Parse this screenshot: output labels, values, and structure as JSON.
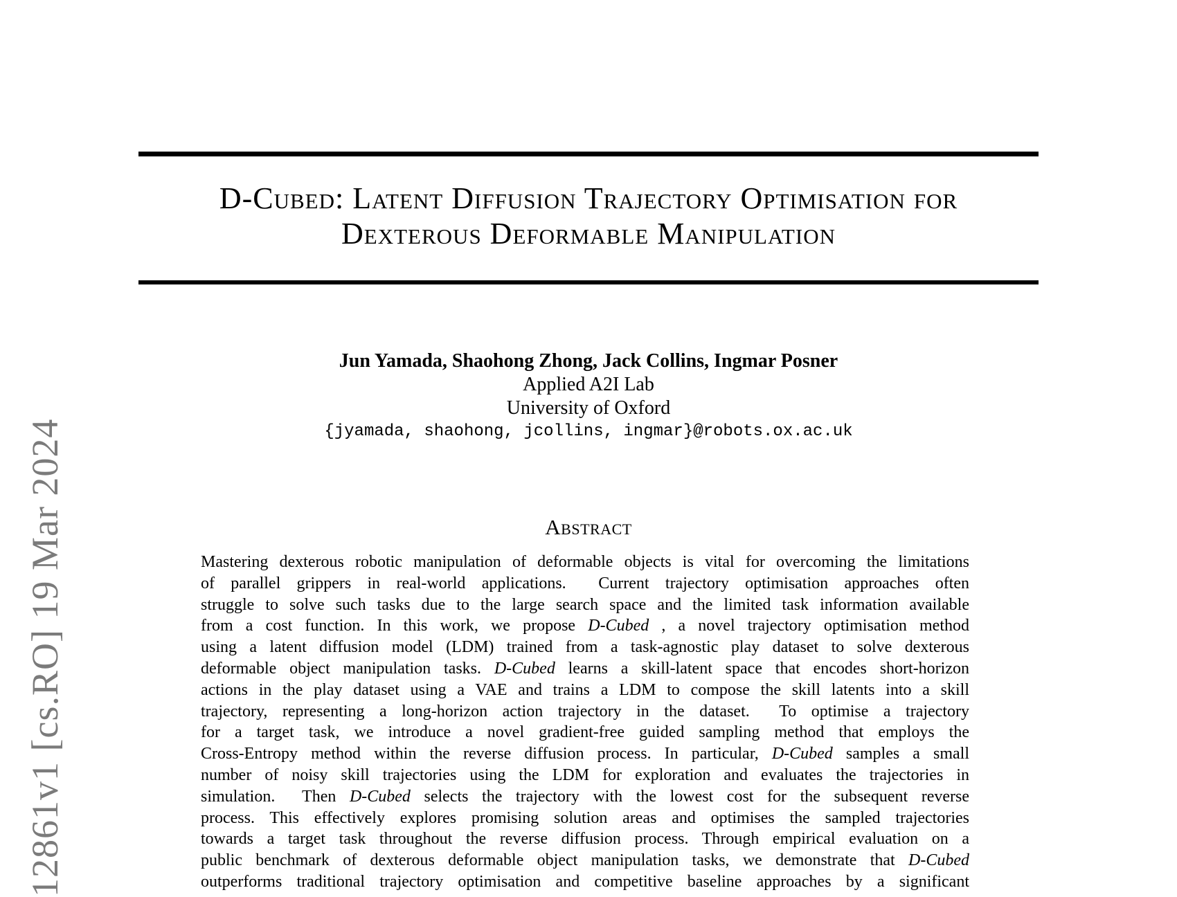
{
  "page": {
    "background": "#ffffff",
    "text_color": "#000000",
    "watermark_color": "#7b7b7b"
  },
  "watermark": {
    "text": "12861v1  [cs.RO]  19 Mar 2024"
  },
  "title": {
    "line1": "D-Cubed: Latent Diffusion Trajectory Optimisation for",
    "line2": "Dexterous Deformable Manipulation"
  },
  "authors": {
    "names": "Jun Yamada, Shaohong Zhong, Jack Collins, Ingmar Posner",
    "lab": "Applied A2I Lab",
    "institution": "University of Oxford",
    "email": "{jyamada, shaohong, jcollins, ingmar}@robots.ox.ac.uk"
  },
  "abstract": {
    "heading": "Abstract",
    "italic_token": "D-Cubed",
    "lines": [
      "Mastering dexterous robotic manipulation of deformable objects is vital for overcoming the limitations",
      "of parallel grippers in real-world applications.  Current trajectory optimisation approaches often",
      "struggle to solve such tasks due to the large search space and the limited task information available",
      "from a cost function. In this work, we propose D-Cubed , a novel trajectory optimisation method",
      "using a latent diffusion model (LDM) trained from a task-agnostic play dataset to solve dexterous",
      "deformable object manipulation tasks. D-Cubed learns a skill-latent space that encodes short-horizon",
      "actions in the play dataset using a VAE and trains a LDM to compose the skill latents into a skill",
      "trajectory, representing a long-horizon action trajectory in the dataset.  To optimise a trajectory",
      "for a target task, we introduce a novel gradient-free guided sampling method that employs the",
      "Cross-Entropy method within the reverse diffusion process. In particular, D-Cubed samples a small",
      "number of noisy skill trajectories using the LDM for exploration and evaluates the trajectories in",
      "simulation.  Then D-Cubed selects the trajectory with the lowest cost for the subsequent reverse",
      "process. This effectively explores promising solution areas and optimises the sampled trajectories",
      "towards a target task throughout the reverse diffusion process. Through empirical evaluation on a",
      "public benchmark of dexterous deformable object manipulation tasks, we demonstrate that D-Cubed",
      "outperforms traditional trajectory optimisation and competitive baseline approaches by a significant"
    ]
  }
}
